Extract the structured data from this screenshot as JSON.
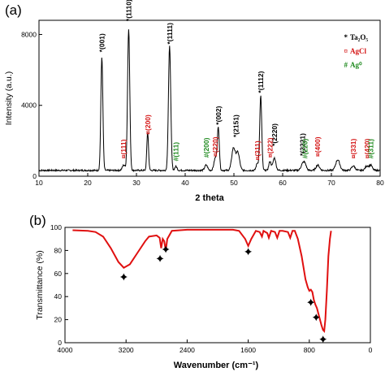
{
  "colors": {
    "black": "#000000",
    "agcl": "#d41515",
    "ag": "#1f8a1f",
    "ftir_line": "#e01010"
  },
  "chart_data": [
    {
      "type": "line",
      "panel_label": "(a)",
      "xlabel": "2 theta",
      "ylabel": "Intensity (a.u.)",
      "xlim": [
        10,
        80
      ],
      "ylim": [
        0,
        8800
      ],
      "x_ticks": [
        "10",
        "20",
        "30",
        "40",
        "50",
        "60",
        "70",
        "80"
      ],
      "y_ticks": [
        "0",
        "4000",
        "8000"
      ],
      "legend": [
        {
          "marker": "*",
          "text": "Ta₂O₅",
          "color": "#000000"
        },
        {
          "marker": "¤",
          "text": "AgCl",
          "color": "#d41515"
        },
        {
          "marker": "#",
          "text": "Ag⁰",
          "color": "#1f8a1f"
        }
      ],
      "annotations": [
        {
          "x": 22.9,
          "y": 7000,
          "text": "*(001)",
          "color": "#000000"
        },
        {
          "x": 28.4,
          "y": 8750,
          "text": "*(1110)",
          "color": "#000000"
        },
        {
          "x": 36.8,
          "y": 7450,
          "text": "*(1111)",
          "color": "#000000"
        },
        {
          "x": 46.8,
          "y": 2900,
          "text": "*(002)",
          "color": "#000000"
        },
        {
          "x": 50.4,
          "y": 2200,
          "text": "*(2151)",
          "color": "#000000"
        },
        {
          "x": 55.5,
          "y": 4700,
          "text": "*(1112)",
          "color": "#000000"
        },
        {
          "x": 58.3,
          "y": 1700,
          "text": "*(2220)",
          "color": "#000000"
        },
        {
          "x": 64.1,
          "y": 1150,
          "text": "*(2221)",
          "color": "#000000"
        },
        {
          "x": 27.3,
          "y": 1000,
          "text": "¤(111)",
          "color": "#d41515"
        },
        {
          "x": 32.3,
          "y": 2350,
          "text": "¤(200)",
          "color": "#d41515"
        },
        {
          "x": 46.2,
          "y": 1100,
          "text": "¤(220)",
          "color": "#d41515"
        },
        {
          "x": 54.8,
          "y": 900,
          "text": "¤(311)",
          "color": "#d41515"
        },
        {
          "x": 57.4,
          "y": 1050,
          "text": "¤(222)",
          "color": "#d41515"
        },
        {
          "x": 67.2,
          "y": 1100,
          "text": "¤(400)",
          "color": "#d41515"
        },
        {
          "x": 74.5,
          "y": 1000,
          "text": "¤(331)",
          "color": "#d41515"
        },
        {
          "x": 77.3,
          "y": 1000,
          "text": "¤(420)",
          "color": "#d41515"
        },
        {
          "x": 38.1,
          "y": 850,
          "text": "#(111)",
          "color": "#1f8a1f"
        },
        {
          "x": 44.3,
          "y": 1050,
          "text": "#(200)",
          "color": "#1f8a1f"
        },
        {
          "x": 64.6,
          "y": 1000,
          "text": "#(220)",
          "color": "#1f8a1f"
        },
        {
          "x": 78.1,
          "y": 1000,
          "text": "#(311)",
          "color": "#1f8a1f"
        }
      ],
      "baseline": 330,
      "peaks": [
        {
          "x": 22.9,
          "height": 6400,
          "width": 0.35
        },
        {
          "x": 28.4,
          "height": 8000,
          "width": 0.38
        },
        {
          "x": 27.4,
          "height": 300,
          "width": 0.5
        },
        {
          "x": 32.3,
          "height": 2150,
          "width": 0.3
        },
        {
          "x": 36.8,
          "height": 7000,
          "width": 0.4
        },
        {
          "x": 38.1,
          "height": 220,
          "width": 0.4
        },
        {
          "x": 44.3,
          "height": 300,
          "width": 0.5
        },
        {
          "x": 46.2,
          "height": 700,
          "width": 0.5
        },
        {
          "x": 46.8,
          "height": 2350,
          "width": 0.35
        },
        {
          "x": 49.9,
          "height": 1250,
          "width": 0.6
        },
        {
          "x": 50.8,
          "height": 1000,
          "width": 0.6
        },
        {
          "x": 54.8,
          "height": 400,
          "width": 0.4
        },
        {
          "x": 55.5,
          "height": 4200,
          "width": 0.35
        },
        {
          "x": 57.4,
          "height": 500,
          "width": 0.4
        },
        {
          "x": 58.3,
          "height": 700,
          "width": 0.5
        },
        {
          "x": 64.1,
          "height": 350,
          "width": 0.6
        },
        {
          "x": 64.6,
          "height": 300,
          "width": 0.5
        },
        {
          "x": 67.2,
          "height": 300,
          "width": 0.6
        },
        {
          "x": 71.3,
          "height": 600,
          "width": 0.7
        },
        {
          "x": 74.5,
          "height": 250,
          "width": 0.6
        },
        {
          "x": 77.3,
          "height": 250,
          "width": 0.6
        },
        {
          "x": 78.1,
          "height": 280,
          "width": 0.5
        }
      ]
    },
    {
      "type": "line",
      "panel_label": "(b)",
      "xlabel": "Wavenumber (cm⁻¹)",
      "ylabel": "Transmittance (%)",
      "xlim": [
        4000,
        0
      ],
      "ylim": [
        0,
        100
      ],
      "x_ticks": [
        "4000",
        "3200",
        "2400",
        "1600",
        "800",
        "0"
      ],
      "y_ticks": [
        "0",
        "20",
        "40",
        "60",
        "80",
        "100"
      ],
      "series_points": [
        [
          3900,
          97.5
        ],
        [
          3700,
          97
        ],
        [
          3600,
          96
        ],
        [
          3500,
          92
        ],
        [
          3400,
          82
        ],
        [
          3300,
          70
        ],
        [
          3230,
          65
        ],
        [
          3150,
          68
        ],
        [
          3050,
          78
        ],
        [
          2950,
          88
        ],
        [
          2900,
          92
        ],
        [
          2800,
          93
        ],
        [
          2760,
          91
        ],
        [
          2740,
          82
        ],
        [
          2720,
          90
        ],
        [
          2700,
          88
        ],
        [
          2680,
          80
        ],
        [
          2660,
          90
        ],
        [
          2600,
          97
        ],
        [
          2400,
          98
        ],
        [
          2000,
          98
        ],
        [
          1800,
          98
        ],
        [
          1720,
          97
        ],
        [
          1640,
          90
        ],
        [
          1600,
          84
        ],
        [
          1560,
          90
        ],
        [
          1500,
          97
        ],
        [
          1450,
          96
        ],
        [
          1420,
          92
        ],
        [
          1400,
          97
        ],
        [
          1350,
          95
        ],
        [
          1330,
          91
        ],
        [
          1300,
          97
        ],
        [
          1250,
          96
        ],
        [
          1220,
          91
        ],
        [
          1190,
          97
        ],
        [
          1150,
          97
        ],
        [
          1080,
          96
        ],
        [
          1050,
          91
        ],
        [
          1020,
          97
        ],
        [
          990,
          97
        ],
        [
          950,
          90
        ],
        [
          900,
          75
        ],
        [
          850,
          55
        ],
        [
          820,
          48
        ],
        [
          800,
          45
        ],
        [
          780,
          46
        ],
        [
          760,
          44
        ],
        [
          740,
          37
        ],
        [
          720,
          33
        ],
        [
          700,
          30
        ],
        [
          680,
          25
        ],
        [
          660,
          20
        ],
        [
          640,
          15
        ],
        [
          620,
          11
        ],
        [
          605,
          10
        ],
        [
          590,
          20
        ],
        [
          570,
          45
        ],
        [
          550,
          75
        ],
        [
          530,
          90
        ],
        [
          515,
          97
        ]
      ],
      "markers": [
        {
          "x": 3230,
          "y": 57
        },
        {
          "x": 2755,
          "y": 73
        },
        {
          "x": 2680,
          "y": 81
        },
        {
          "x": 1600,
          "y": 79
        },
        {
          "x": 780,
          "y": 35
        },
        {
          "x": 710,
          "y": 22
        },
        {
          "x": 620,
          "y": 3
        }
      ]
    }
  ]
}
